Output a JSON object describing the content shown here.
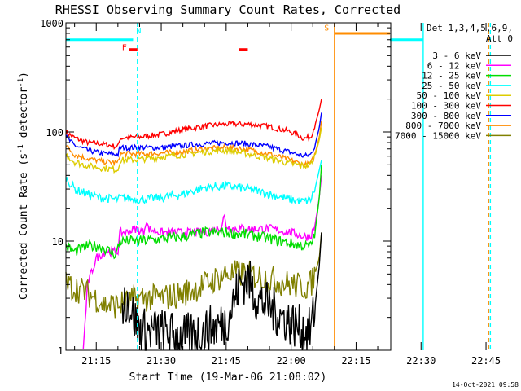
{
  "chart_data": {
    "type": "line",
    "title": "RHESSI Observing Summary Count Rates, Corrected",
    "xlabel": "Start Time (19-Mar-06 21:08:02)",
    "ylabel": "Corrected Count Rate (s-1 detector-1)",
    "ylabel_parts": {
      "main": "Corrected Count Rate (s",
      "sup1": "-1",
      "mid": " detector",
      "sup2": "-1",
      "end": ")"
    },
    "x_start": "21:08:02",
    "xlim_min": [
      8,
      83
    ],
    "ylim": [
      1,
      1000
    ],
    "y_scale": "log",
    "x_ticks": [
      {
        "min": 15,
        "label": "21:15"
      },
      {
        "min": 30,
        "label": "21:30"
      },
      {
        "min": 45,
        "label": "21:45"
      },
      {
        "min": 60,
        "label": "22:00"
      },
      {
        "min": 75,
        "label": "22:15"
      },
      {
        "min": 90,
        "label": "22:30"
      },
      {
        "min": 105,
        "label": "22:45"
      }
    ],
    "y_ticks": [
      {
        "v": 1,
        "label": "1"
      },
      {
        "v": 10,
        "label": "10"
      },
      {
        "v": 100,
        "label": "100"
      },
      {
        "v": 1000,
        "label": "1000"
      }
    ],
    "legend": {
      "placement": "right",
      "header1": "Det 1,3,4,5,6,9,",
      "header2": "Att 0",
      "entries": [
        {
          "name": "3 - 6 keV",
          "color": "#000000"
        },
        {
          "name": "6 - 12 keV",
          "color": "#ff00ff"
        },
        {
          "name": "12 - 25 keV",
          "color": "#00dd00"
        },
        {
          "name": "25 - 50 keV",
          "color": "#00ffff"
        },
        {
          "name": "50 - 100 keV",
          "color": "#ddcc00"
        },
        {
          "name": "100 - 300 keV",
          "color": "#ff0000"
        },
        {
          "name": "300 - 800 keV",
          "color": "#0000ff"
        },
        {
          "name": "800 - 7000 keV",
          "color": "#ff8c00"
        },
        {
          "name": "7000 - 15000 keV",
          "color": "#808000"
        }
      ]
    },
    "series": [
      {
        "name": "100 - 300 keV",
        "color": "#ff0000",
        "noise": 0.025,
        "x": [
          8,
          10,
          13,
          16,
          20,
          20.5,
          25,
          30,
          35,
          40,
          45,
          50,
          55,
          60,
          63,
          64.5,
          65.5,
          66.5,
          67
        ],
        "y": [
          100,
          88,
          80,
          78,
          73,
          88,
          90,
          95,
          105,
          113,
          118,
          118,
          112,
          100,
          87,
          90,
          115,
          160,
          200
        ]
      },
      {
        "name": "300 - 800 keV",
        "color": "#0000ff",
        "noise": 0.025,
        "x": [
          8,
          10,
          13,
          16,
          20,
          20.5,
          25,
          30,
          35,
          40,
          45,
          50,
          55,
          60,
          63,
          64.5,
          65.5,
          66.5,
          67
        ],
        "y": [
          90,
          75,
          68,
          64,
          62,
          72,
          72,
          72,
          75,
          78,
          80,
          78,
          73,
          65,
          60,
          62,
          75,
          110,
          150
        ]
      },
      {
        "name": "800 - 7000 keV",
        "color": "#ff8c00",
        "noise": 0.025,
        "x": [
          8,
          10,
          13,
          16,
          20,
          20.5,
          25,
          30,
          35,
          40,
          45,
          50,
          55,
          60,
          63,
          64.5,
          65.5,
          66.5,
          67
        ],
        "y": [
          75,
          62,
          57,
          54,
          52,
          63,
          63,
          64,
          66,
          70,
          72,
          69,
          63,
          55,
          50,
          51,
          62,
          90,
          125
        ]
      },
      {
        "name": "50 - 100 keV",
        "color": "#ddcc00",
        "noise": 0.03,
        "x": [
          8,
          10,
          13,
          16,
          20,
          20.5,
          25,
          30,
          35,
          40,
          45,
          50,
          55,
          60,
          63,
          64.5,
          65.5,
          66.5,
          67
        ],
        "y": [
          62,
          53,
          49,
          47,
          45,
          55,
          56,
          59,
          62,
          66,
          68,
          63,
          57,
          51,
          49,
          50,
          60,
          85,
          110
        ]
      },
      {
        "name": "25 - 50 keV",
        "color": "#00ffff",
        "noise": 0.04,
        "x": [
          8,
          10,
          13,
          16,
          20,
          20.5,
          25,
          30,
          35,
          40,
          45,
          50,
          55,
          60,
          63,
          64.5,
          65.5,
          66.5,
          67
        ],
        "y": [
          38,
          30,
          27,
          25,
          24,
          25,
          24,
          25,
          27,
          31,
          32,
          30,
          27,
          24,
          23,
          24,
          30,
          45,
          55
        ]
      },
      {
        "name": "6 - 12 keV",
        "color": "#ff00ff",
        "noise": 0.04,
        "x": [
          12,
          13,
          15,
          17,
          19.5,
          20,
          20.5,
          22,
          24,
          26,
          26.5,
          27,
          30,
          35,
          40,
          43,
          44,
          44.5,
          45,
          46,
          50,
          55,
          60,
          63,
          64.5,
          65.5,
          66.5,
          67
        ],
        "y": [
          1,
          4,
          7,
          8,
          8,
          8,
          12,
          12,
          13,
          12,
          16,
          13,
          12,
          12,
          12,
          13,
          14,
          17,
          14,
          13,
          13,
          13,
          12,
          11,
          11,
          14,
          25,
          40
        ]
      },
      {
        "name": "12 - 25 keV",
        "color": "#00dd00",
        "noise": 0.05,
        "x": [
          8,
          10,
          13,
          16,
          19.5,
          20.5,
          25,
          30,
          35,
          40,
          45,
          50,
          55,
          60,
          63,
          64.5,
          65.5,
          66.5,
          67
        ],
        "y": [
          9,
          8,
          9,
          9,
          7.5,
          10,
          10,
          10.5,
          11,
          12,
          12,
          11.5,
          10.5,
          9.5,
          9,
          9,
          12,
          25,
          50
        ]
      },
      {
        "name": "7000 - 15000 keV",
        "color": "#808000",
        "noise": 0.13,
        "x": [
          8,
          12,
          15,
          17,
          20,
          25,
          30,
          35,
          40,
          45,
          50,
          55,
          60,
          63,
          64.5,
          65.5,
          66.5,
          67
        ],
        "y": [
          4,
          3.5,
          3,
          2.6,
          2.6,
          3,
          3,
          3.3,
          4,
          5,
          5,
          4.5,
          4,
          3.8,
          4,
          5,
          7,
          12
        ]
      },
      {
        "name": "3 - 6 keV",
        "color": "#000000",
        "noise": 0.22,
        "x": [
          21,
          22,
          25,
          30,
          35,
          40,
          45,
          47,
          48,
          50,
          52,
          55,
          58,
          60,
          63,
          64.5,
          65.5,
          66.5,
          67
        ],
        "y": [
          2.5,
          3,
          1.5,
          1.5,
          1.3,
          1.5,
          1.8,
          3,
          4,
          4.5,
          3,
          2.5,
          2,
          1.8,
          1.5,
          1.5,
          2.5,
          6,
          12
        ]
      }
    ],
    "bars": [
      {
        "name": "att-bar",
        "color": "#00ffff",
        "x0": 8,
        "x1": 23.5,
        "level": 700
      },
      {
        "name": "att-bar",
        "color": "#00ffff",
        "x0": 90.5,
        "x1": 106,
        "level": 700
      },
      {
        "name": "saa-bar",
        "color": "#ff8c00",
        "x0": 70,
        "x1": 106,
        "level": 800
      },
      {
        "name": "flare-bar",
        "color": "#ff0000",
        "x0": 22.5,
        "x1": 24.5,
        "level": 570
      },
      {
        "name": "flare-bar",
        "color": "#ff0000",
        "x0": 48,
        "x1": 50,
        "level": 570
      }
    ],
    "vlines": [
      {
        "name": "night-start-line",
        "color": "#00ffff",
        "min": 24.5,
        "dash": true
      },
      {
        "name": "saa-line",
        "color": "#ff8c00",
        "min": 70,
        "dash": false
      },
      {
        "name": "night-end-line",
        "color": "#00ffff",
        "min": 90.5,
        "dash": false
      },
      {
        "name": "att-line",
        "color": "#ff8c00",
        "min": 105.6,
        "dash": true
      },
      {
        "name": "att-line",
        "color": "#00ffff",
        "min": 106,
        "dash": true
      }
    ],
    "markers": [
      {
        "text": "F",
        "color": "#ff0000",
        "min": 21.5,
        "level": 560
      },
      {
        "text": "N",
        "color": "#00ffff",
        "min": 24.8,
        "level": 800
      },
      {
        "text": "S",
        "color": "#ff8c00",
        "min": 68.2,
        "level": 850
      }
    ]
  },
  "footer": {
    "timestamp": "14-Oct-2021 09:58"
  }
}
